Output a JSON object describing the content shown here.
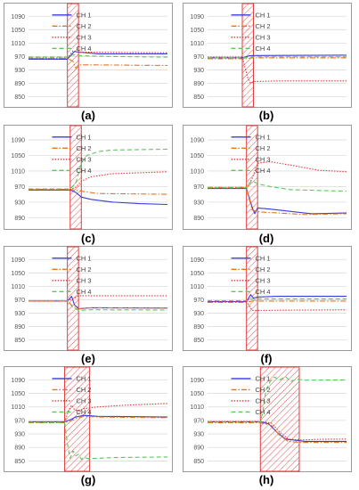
{
  "figure": {
    "series_styles": [
      {
        "name": "CH 1",
        "color": "#3b3bd9",
        "dash": "solid"
      },
      {
        "name": "CH 2",
        "color": "#e8741e",
        "dash": "dashdot"
      },
      {
        "name": "CH 3",
        "color": "#e03a3a",
        "dash": "dotted"
      },
      {
        "name": "CH 4",
        "color": "#5bc85b",
        "dash": "dashed"
      }
    ],
    "highlight_color": "#e03a3a"
  },
  "chart_data": [
    {
      "panel": "(a)",
      "type": "line",
      "y_ticks": [
        850,
        890,
        930,
        970,
        1010,
        1050,
        1090
      ],
      "ylim": [
        830,
        1120
      ],
      "xlim": [
        0,
        100
      ],
      "grid": true,
      "legend": [
        "CH 1",
        "CH 2",
        "CH 3",
        "CH 4"
      ],
      "highlight": [
        28,
        36
      ],
      "series": [
        {
          "name": "CH 1",
          "x": [
            0,
            28,
            33,
            36,
            50,
            100
          ],
          "y": [
            962,
            962,
            985,
            983,
            978,
            978
          ]
        },
        {
          "name": "CH 2",
          "x": [
            0,
            28,
            32,
            34,
            36,
            45,
            100
          ],
          "y": [
            965,
            965,
            955,
            935,
            945,
            945,
            943
          ]
        },
        {
          "name": "CH 3",
          "x": [
            0,
            28,
            32,
            36,
            100
          ],
          "y": [
            965,
            965,
            987,
            983,
            981
          ]
        },
        {
          "name": "CH 4",
          "x": [
            0,
            28,
            32,
            36,
            60,
            100
          ],
          "y": [
            968,
            968,
            975,
            972,
            970,
            968
          ]
        }
      ]
    },
    {
      "panel": "(b)",
      "type": "line",
      "y_ticks": [
        850,
        890,
        930,
        970,
        1010,
        1050,
        1090
      ],
      "ylim": [
        830,
        1120
      ],
      "xlim": [
        0,
        100
      ],
      "grid": true,
      "legend": [
        "CH 1",
        "CH 2",
        "CH 3",
        "CH 4"
      ],
      "highlight": [
        25,
        33
      ],
      "series": [
        {
          "name": "CH 1",
          "x": [
            0,
            25,
            30,
            33,
            100
          ],
          "y": [
            966,
            966,
            972,
            973,
            974
          ]
        },
        {
          "name": "CH 2",
          "x": [
            0,
            25,
            33,
            100
          ],
          "y": [
            963,
            963,
            966,
            966
          ]
        },
        {
          "name": "CH 3",
          "x": [
            0,
            25,
            29,
            31,
            33,
            50,
            100
          ],
          "y": [
            968,
            968,
            905,
            890,
            895,
            897,
            897
          ]
        },
        {
          "name": "CH 4",
          "x": [
            0,
            25,
            33,
            100
          ],
          "y": [
            966,
            966,
            969,
            969
          ]
        }
      ]
    },
    {
      "panel": "(c)",
      "type": "line",
      "y_ticks": [
        890,
        930,
        970,
        1010,
        1050,
        1090
      ],
      "ylim": [
        870,
        1120
      ],
      "xlim": [
        0,
        100
      ],
      "grid": true,
      "legend": [
        "CH 1",
        "CH 2",
        "CH 3",
        "CH 4"
      ],
      "highlight": [
        30,
        38
      ],
      "series": [
        {
          "name": "CH 1",
          "x": [
            0,
            30,
            34,
            38,
            45,
            60,
            80,
            100
          ],
          "y": [
            961,
            961,
            955,
            943,
            937,
            930,
            926,
            924
          ]
        },
        {
          "name": "CH 2",
          "x": [
            0,
            30,
            38,
            50,
            100
          ],
          "y": [
            963,
            963,
            958,
            952,
            950
          ]
        },
        {
          "name": "CH 3",
          "x": [
            0,
            30,
            34,
            38,
            45,
            60,
            100
          ],
          "y": [
            962,
            962,
            968,
            984,
            995,
            1003,
            1008
          ]
        },
        {
          "name": "CH 4",
          "x": [
            0,
            30,
            34,
            38,
            42,
            50,
            60,
            100
          ],
          "y": [
            964,
            964,
            978,
            1030,
            1050,
            1060,
            1064,
            1066
          ]
        }
      ]
    },
    {
      "panel": "(d)",
      "type": "line",
      "y_ticks": [
        890,
        930,
        970,
        1010,
        1050,
        1090
      ],
      "ylim": [
        870,
        1120
      ],
      "xlim": [
        0,
        100
      ],
      "grid": true,
      "legend": [
        "CH 1",
        "CH 2",
        "CH 3",
        "CH 4"
      ],
      "highlight": [
        28,
        36
      ],
      "series": [
        {
          "name": "CH 1",
          "x": [
            0,
            28,
            32,
            34,
            36,
            45,
            60,
            75,
            100
          ],
          "y": [
            965,
            965,
            918,
            900,
            915,
            912,
            906,
            900,
            902
          ]
        },
        {
          "name": "CH 2",
          "x": [
            0,
            28,
            32,
            36,
            50,
            70,
            100
          ],
          "y": [
            968,
            968,
            910,
            905,
            902,
            898,
            900
          ]
        },
        {
          "name": "CH 3",
          "x": [
            0,
            28,
            32,
            36,
            45,
            60,
            80,
            100
          ],
          "y": [
            966,
            966,
            990,
            1030,
            1034,
            1025,
            1012,
            1008
          ]
        },
        {
          "name": "CH 4",
          "x": [
            0,
            28,
            32,
            36,
            45,
            60,
            100
          ],
          "y": [
            967,
            967,
            985,
            977,
            970,
            962,
            958
          ]
        }
      ]
    },
    {
      "panel": "(e)",
      "type": "line",
      "y_ticks": [
        850,
        890,
        930,
        970,
        1010,
        1050,
        1090
      ],
      "ylim": [
        830,
        1120
      ],
      "xlim": [
        0,
        100
      ],
      "grid": true,
      "legend": [
        "CH 1",
        "CH 2",
        "CH 3",
        "CH 4"
      ],
      "highlight": [
        28,
        36
      ],
      "series": [
        {
          "name": "CH 1",
          "x": [
            0,
            28,
            31,
            33,
            36,
            45,
            100
          ],
          "y": [
            966,
            966,
            980,
            955,
            943,
            946,
            945
          ]
        },
        {
          "name": "CH 2",
          "x": [
            0,
            28,
            32,
            36,
            45,
            100
          ],
          "y": [
            966,
            966,
            950,
            942,
            946,
            945
          ]
        },
        {
          "name": "CH 3",
          "x": [
            0,
            28,
            33,
            36,
            100
          ],
          "y": [
            966,
            966,
            975,
            982,
            982
          ]
        },
        {
          "name": "CH 4",
          "x": [
            0,
            28,
            32,
            36,
            45,
            100
          ],
          "y": [
            967,
            967,
            947,
            938,
            940,
            939
          ]
        }
      ]
    },
    {
      "panel": "(f)",
      "type": "line",
      "y_ticks": [
        850,
        890,
        930,
        970,
        1010,
        1050,
        1090
      ],
      "ylim": [
        830,
        1120
      ],
      "xlim": [
        0,
        100
      ],
      "grid": true,
      "legend": [
        "CH 1",
        "CH 2",
        "CH 3",
        "CH 4"
      ],
      "highlight": [
        28,
        36
      ],
      "series": [
        {
          "name": "CH 1",
          "x": [
            0,
            28,
            31,
            33,
            36,
            50,
            100
          ],
          "y": [
            964,
            964,
            985,
            975,
            978,
            980,
            980
          ]
        },
        {
          "name": "CH 2",
          "x": [
            0,
            28,
            33,
            36,
            100
          ],
          "y": [
            962,
            962,
            967,
            966,
            966
          ]
        },
        {
          "name": "CH 3",
          "x": [
            0,
            28,
            32,
            36,
            100
          ],
          "y": [
            965,
            965,
            938,
            938,
            940
          ]
        },
        {
          "name": "CH 4",
          "x": [
            0,
            28,
            32,
            36,
            100
          ],
          "y": [
            967,
            967,
            972,
            972,
            972
          ]
        }
      ]
    },
    {
      "panel": "(g)",
      "type": "line",
      "y_ticks": [
        850,
        890,
        930,
        970,
        1010,
        1050,
        1090
      ],
      "ylim": [
        830,
        1120
      ],
      "xlim": [
        0,
        100
      ],
      "grid": true,
      "legend": [
        "CH 1",
        "CH 2",
        "CH 3",
        "CH 4"
      ],
      "highlight": [
        26,
        44
      ],
      "series": [
        {
          "name": "CH 1",
          "x": [
            0,
            26,
            30,
            34,
            40,
            50,
            100
          ],
          "y": [
            966,
            966,
            972,
            980,
            985,
            982,
            980
          ]
        },
        {
          "name": "CH 2",
          "x": [
            0,
            26,
            30,
            34,
            40,
            50,
            100
          ],
          "y": [
            963,
            963,
            968,
            975,
            982,
            980,
            978
          ]
        },
        {
          "name": "CH 3",
          "x": [
            0,
            26,
            29,
            31,
            33,
            36,
            40,
            50,
            70,
            100
          ],
          "y": [
            966,
            966,
            1000,
            1015,
            1002,
            998,
            1005,
            1010,
            1015,
            1020
          ]
        },
        {
          "name": "CH 4",
          "x": [
            0,
            26,
            28,
            30,
            32,
            34,
            36,
            38,
            40,
            44,
            60,
            100
          ],
          "y": [
            964,
            964,
            900,
            858,
            880,
            865,
            870,
            855,
            860,
            857,
            860,
            862
          ]
        }
      ]
    },
    {
      "panel": "(h)",
      "type": "line",
      "y_ticks": [
        850,
        890,
        930,
        970,
        1010,
        1050,
        1090
      ],
      "ylim": [
        830,
        1120
      ],
      "xlim": [
        0,
        100
      ],
      "grid": true,
      "legend": [
        "CH 1",
        "CH 2",
        "CH 3",
        "CH 4"
      ],
      "highlight": [
        38,
        66
      ],
      "series": [
        {
          "name": "CH 1",
          "x": [
            0,
            38,
            44,
            50,
            56,
            62,
            70,
            100
          ],
          "y": [
            966,
            966,
            960,
            935,
            915,
            912,
            908,
            908
          ]
        },
        {
          "name": "CH 2",
          "x": [
            0,
            38,
            46,
            52,
            58,
            66,
            100
          ],
          "y": [
            963,
            963,
            955,
            925,
            908,
            905,
            905
          ]
        },
        {
          "name": "CH 3",
          "x": [
            0,
            38,
            46,
            52,
            58,
            66,
            80,
            100
          ],
          "y": [
            967,
            967,
            962,
            935,
            915,
            912,
            914,
            915
          ]
        },
        {
          "name": "CH 4",
          "x": [
            0,
            38,
            40,
            42,
            45,
            48,
            52,
            56,
            60,
            64,
            70,
            100
          ],
          "y": [
            965,
            965,
            1000,
            1060,
            1085,
            1098,
            1090,
            1100,
            1085,
            1092,
            1089,
            1090
          ]
        }
      ]
    }
  ]
}
